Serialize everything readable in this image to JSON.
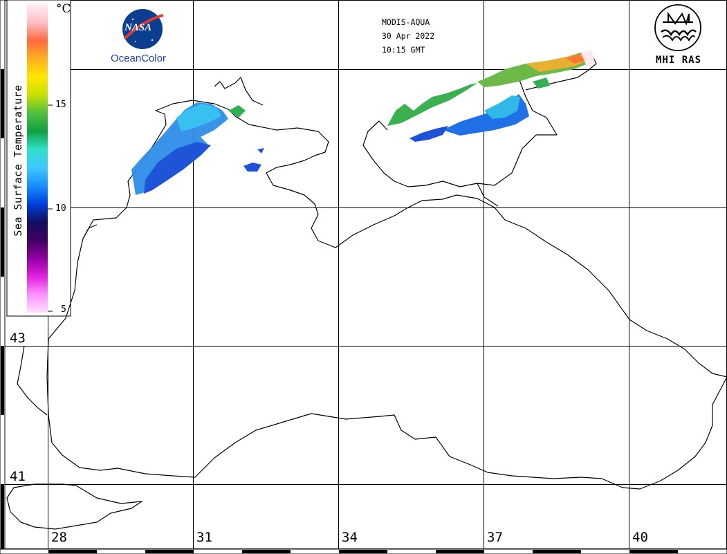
{
  "header": {
    "sensor": "MODIS-AQUA",
    "date": "30 Apr 2022",
    "time": "10:15 GMT"
  },
  "logos": {
    "nasa_text": "NASA",
    "oceancolor_text": "OceanColor",
    "institute_text": "MHI RAS"
  },
  "colorbar": {
    "title": "Sea Surface Temperature",
    "unit": "°C",
    "ticks": [
      "15",
      "10",
      "5"
    ],
    "colors": [
      "#fff0f4",
      "#ffc0c8",
      "#ff6a40",
      "#ffb020",
      "#ffe600",
      "#c8e000",
      "#50c040",
      "#10a040",
      "#30e0c8",
      "#40c8ff",
      "#1890ff",
      "#0040e0",
      "#101060",
      "#400060",
      "#9000a0",
      "#e020e0",
      "#ff90ff",
      "#ffe0ff"
    ]
  },
  "map": {
    "lon_labels": [
      "28",
      "31",
      "34",
      "37",
      "40"
    ],
    "lat_labels": [
      "43",
      "41"
    ]
  }
}
